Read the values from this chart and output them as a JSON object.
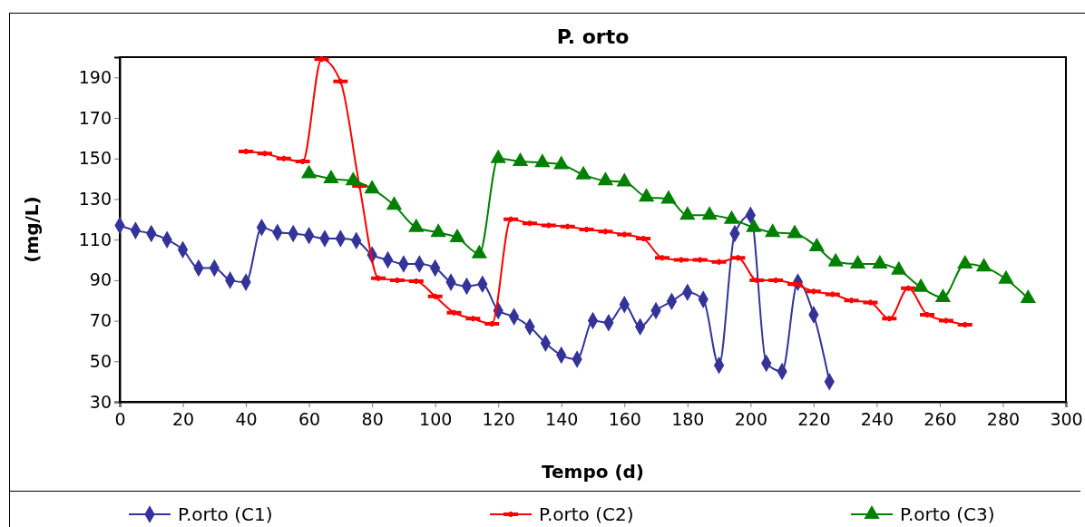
{
  "chart_data": {
    "type": "line",
    "title": "P. orto",
    "xlabel": "Tempo (d)",
    "ylabel": "(mg/L)",
    "xlim": [
      0,
      300
    ],
    "xticks": [
      0,
      20,
      40,
      60,
      80,
      100,
      120,
      140,
      160,
      180,
      200,
      220,
      240,
      260,
      280,
      300
    ],
    "ylim": [
      30,
      200
    ],
    "yticks": [
      30,
      50,
      70,
      90,
      110,
      130,
      150,
      170,
      190
    ],
    "grid": false,
    "legend": "bottom",
    "series": [
      {
        "name": "P.orto (C1)",
        "color": "#333399",
        "marker": "diamond",
        "x": [
          0,
          5,
          10,
          15,
          20,
          25,
          30,
          35,
          40,
          45,
          50,
          55,
          60,
          65,
          70,
          75,
          80,
          85,
          90,
          95,
          100,
          105,
          110,
          115,
          120,
          125,
          130,
          135,
          140,
          145,
          150,
          155,
          160,
          165,
          170,
          175,
          180,
          185,
          190,
          195,
          200,
          205,
          210,
          215,
          220,
          225
        ],
        "values": [
          117,
          114.5,
          113,
          110,
          105,
          96,
          96,
          90,
          89,
          116,
          113.5,
          113,
          112,
          110.5,
          110.5,
          109.5,
          102.5,
          100,
          98,
          98,
          96,
          89,
          87,
          88,
          75,
          72,
          67,
          59,
          53,
          51,
          70,
          69,
          78,
          67,
          75,
          79.5,
          84,
          80.5,
          48,
          113,
          122,
          49,
          45,
          89,
          73,
          40
        ]
      },
      {
        "name": "P.orto (C2)",
        "color": "#ff0000",
        "marker": "cross",
        "x": [
          40,
          46,
          52,
          58,
          64,
          70,
          76,
          82,
          88,
          94,
          100,
          106,
          112,
          118,
          124,
          130,
          136,
          142,
          148,
          154,
          160,
          166,
          172,
          178,
          184,
          190,
          196,
          202,
          208,
          214,
          220,
          226,
          232,
          238,
          244,
          250,
          256,
          262,
          268
        ],
        "values": [
          153.5,
          152.5,
          150,
          148.5,
          199,
          188,
          136.5,
          91,
          90,
          89.5,
          82,
          74,
          71,
          68.5,
          120,
          118,
          117,
          116.5,
          115,
          114,
          112.5,
          110.5,
          101,
          100,
          100,
          99,
          101,
          90,
          90,
          88,
          84.5,
          83,
          80,
          79,
          71,
          86,
          73,
          70,
          68
        ]
      },
      {
        "name": "P.orto (C3)",
        "color": "#008000",
        "marker": "triangle",
        "x": [
          60,
          67,
          74,
          80,
          87,
          94,
          101,
          107,
          114,
          120,
          127,
          134,
          140,
          147,
          154,
          160,
          167,
          174,
          180,
          187,
          194,
          201,
          207,
          214,
          221,
          227,
          234,
          241,
          247,
          254,
          261,
          268,
          274,
          281,
          288
        ],
        "values": [
          142.5,
          140,
          139,
          135,
          127,
          116,
          113.5,
          111,
          103,
          150,
          148.5,
          148,
          147,
          142,
          139,
          138.5,
          131,
          130,
          122,
          122,
          120,
          116,
          113.5,
          113,
          106.5,
          99,
          98,
          98,
          95,
          86.5,
          81.5,
          98,
          96.5,
          90.5,
          81
        ]
      }
    ]
  }
}
